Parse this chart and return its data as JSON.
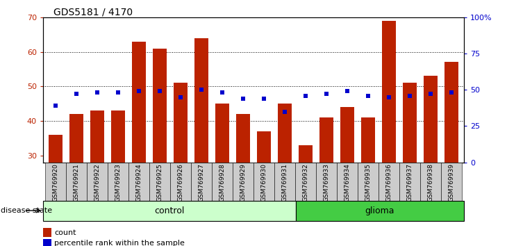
{
  "title": "GDS5181 / 4170",
  "samples": [
    "GSM769920",
    "GSM769921",
    "GSM769922",
    "GSM769923",
    "GSM769924",
    "GSM769925",
    "GSM769926",
    "GSM769927",
    "GSM769928",
    "GSM769929",
    "GSM769930",
    "GSM769931",
    "GSM769932",
    "GSM769933",
    "GSM769934",
    "GSM769935",
    "GSM769936",
    "GSM769937",
    "GSM769938",
    "GSM769939"
  ],
  "counts": [
    36,
    42,
    43,
    43,
    63,
    61,
    51,
    64,
    45,
    42,
    37,
    45,
    33,
    41,
    44,
    41,
    69,
    51,
    53,
    57
  ],
  "percentile_ranks": [
    39,
    47,
    48,
    48,
    49,
    49,
    45,
    50,
    48,
    44,
    44,
    35,
    46,
    47,
    49,
    46,
    45,
    46,
    47,
    48
  ],
  "control_count": 12,
  "ylim_left": [
    28,
    70
  ],
  "ylim_right": [
    0,
    100
  ],
  "yticks_left": [
    30,
    40,
    50,
    60,
    70
  ],
  "yticks_right": [
    0,
    25,
    50,
    75,
    100
  ],
  "ytick_right_labels": [
    "0",
    "25",
    "50",
    "75",
    "100%"
  ],
  "bar_color": "#bb2200",
  "dot_color": "#0000cc",
  "control_bg": "#ccffcc",
  "glioma_bg": "#44cc44",
  "tick_label_bg": "#cccccc",
  "grid_dotted_color": "#000000",
  "legend_count": "count",
  "legend_pct": "percentile rank within the sample",
  "disease_state_label": "disease state",
  "control_label": "control",
  "glioma_label": "glioma",
  "grid_lines": [
    40,
    50,
    60
  ]
}
